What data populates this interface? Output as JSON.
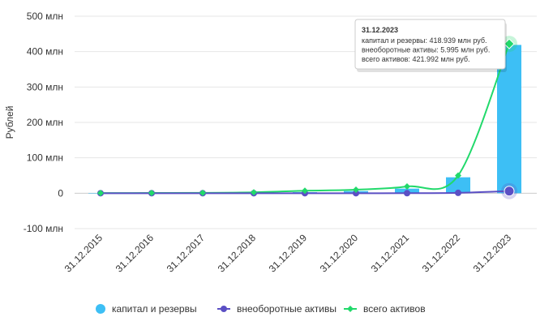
{
  "chart_data": {
    "type": "bar+line",
    "ylabel": "Рублей",
    "ylim": [
      -100,
      500
    ],
    "yticks": [
      500,
      400,
      300,
      200,
      100,
      0,
      -100
    ],
    "ytick_labels": [
      "500 млн",
      "400 млн",
      "300 млн",
      "200 млн",
      "100 млн",
      "0",
      "-100 млн"
    ],
    "categories": [
      "31.12.2015",
      "31.12.2016",
      "31.12.2017",
      "31.12.2018",
      "31.12.2019",
      "31.12.2020",
      "31.12.2021",
      "31.12.2022",
      "31.12.2023"
    ],
    "series": [
      {
        "name": "капитал и резервы",
        "kind": "bar",
        "color": "#3dbff5",
        "values": [
          0.2,
          0.3,
          0.5,
          0.8,
          3,
          6,
          13,
          45,
          418.939
        ]
      },
      {
        "name": "внеоборотные активы",
        "kind": "line",
        "color": "#5b4fc4",
        "values": [
          0,
          0,
          0,
          0,
          0,
          0,
          0.1,
          1,
          5.995
        ]
      },
      {
        "name": "всего активов",
        "kind": "line",
        "color": "#21d96b",
        "values": [
          0.5,
          0.7,
          1,
          2.5,
          7,
          10,
          19,
          50,
          421.992
        ]
      }
    ],
    "tooltip": {
      "title": "31.12.2023",
      "lines": [
        "капитал и резервы: 418.939 млн руб.",
        "внеоборотные активы: 5.995 млн руб.",
        "всего активов: 421.992 млн руб."
      ]
    }
  }
}
